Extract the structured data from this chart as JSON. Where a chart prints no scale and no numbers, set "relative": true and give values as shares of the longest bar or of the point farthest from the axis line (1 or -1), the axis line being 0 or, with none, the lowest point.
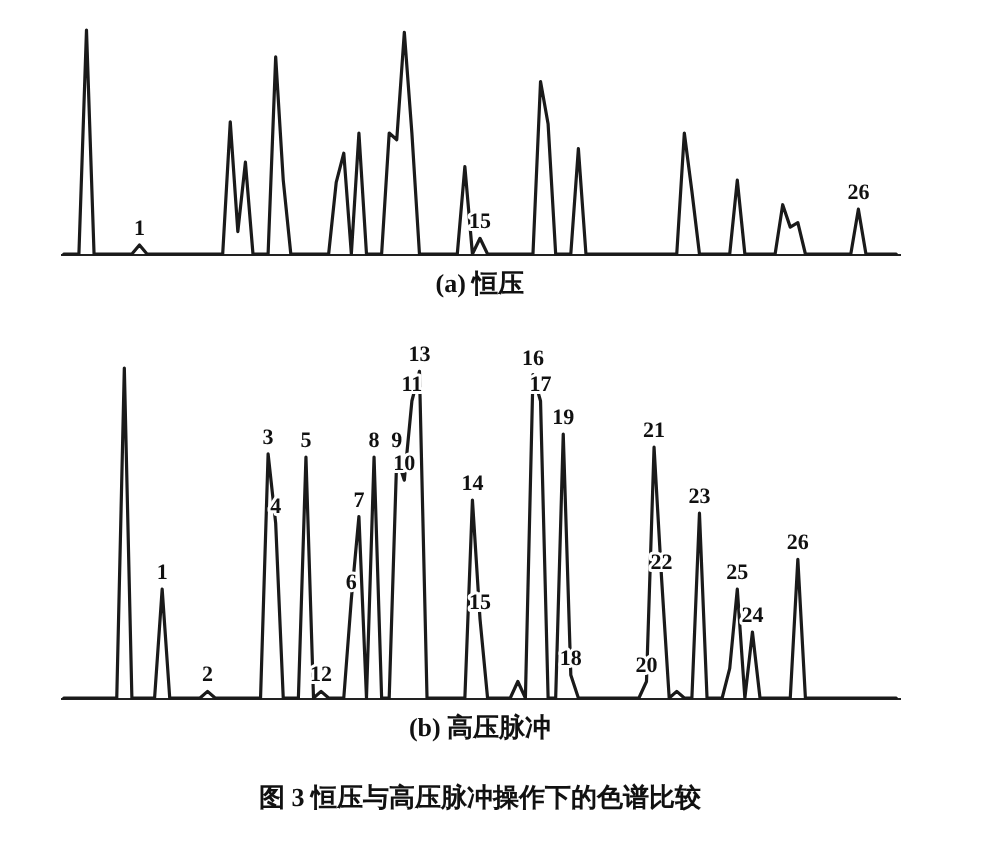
{
  "chart_data": [
    {
      "type": "line",
      "title": "(a) 恒压",
      "relative": true,
      "color": "#1a1a1a",
      "categories": [
        null,
        null,
        null,
        null,
        null,
        null,
        null,
        null,
        null,
        null,
        null,
        null,
        null,
        null,
        null,
        null,
        null,
        null,
        null,
        null,
        null,
        null,
        null,
        null,
        null,
        null,
        null,
        null,
        null,
        null,
        null,
        null,
        null,
        null,
        null,
        null,
        null,
        null,
        null,
        null,
        null,
        null,
        null,
        null,
        null,
        null,
        null,
        null,
        null,
        null,
        null,
        null,
        null,
        null,
        null,
        null,
        null,
        null,
        null,
        null,
        null,
        null,
        null,
        null,
        null,
        null,
        null,
        null,
        null,
        null,
        null,
        null,
        null,
        null,
        null,
        null,
        null,
        null,
        null,
        null,
        null,
        null,
        null,
        null,
        null,
        null,
        null,
        null,
        null,
        null,
        null,
        null,
        null,
        null,
        null,
        null,
        null,
        null,
        null,
        null,
        null,
        null,
        null,
        null,
        null,
        null,
        null,
        null,
        null,
        null,
        null
      ],
      "values": [
        0,
        0,
        0,
        1.0,
        0,
        0,
        0,
        0,
        0,
        0,
        0.04,
        0,
        0,
        0,
        0,
        0,
        0,
        0,
        0,
        0,
        0,
        0,
        0.59,
        0.1,
        0.41,
        0,
        0,
        0,
        0.88,
        0.33,
        0,
        0,
        0,
        0,
        0,
        0,
        0.32,
        0.45,
        0,
        0.54,
        0,
        0,
        0,
        0.54,
        0.51,
        0.99,
        0.54,
        0,
        0,
        0,
        0,
        0,
        0,
        0.39,
        0,
        0.07,
        0,
        0,
        0,
        0,
        0,
        0,
        0,
        0.77,
        0.58,
        0,
        0,
        0,
        0.47,
        0,
        0,
        0,
        0,
        0,
        0,
        0,
        0,
        0,
        0,
        0,
        0,
        0,
        0.54,
        0.28,
        0,
        0,
        0,
        0,
        0,
        0.33,
        0,
        0,
        0,
        0,
        0,
        0.22,
        0.12,
        0.14,
        0,
        0,
        0,
        0,
        0,
        0,
        0,
        0.2,
        0,
        0,
        0,
        0,
        0
      ],
      "annotations": [
        {
          "text": "1",
          "y": 0.04
        },
        {
          "text": "15",
          "y": 0.07
        },
        {
          "text": "26",
          "y": 0.2
        }
      ]
    },
    {
      "type": "line",
      "title": "(b) 高压脉冲",
      "relative": true,
      "color": "#1a1a1a",
      "categories": [
        null,
        null,
        null,
        null,
        null,
        null,
        null,
        null,
        null,
        null,
        null,
        null,
        null,
        null,
        null,
        null,
        null,
        null,
        null,
        null,
        null,
        null,
        null,
        null,
        null,
        null,
        null,
        null,
        null,
        null,
        null,
        null,
        null,
        null,
        null,
        null,
        null,
        null,
        null,
        null,
        null,
        null,
        null,
        null,
        null,
        null,
        null,
        null,
        null,
        null,
        null,
        null,
        null,
        null,
        null,
        null,
        null,
        null,
        null,
        null,
        null,
        null,
        null,
        null,
        null,
        null,
        null,
        null,
        null,
        null,
        null,
        null,
        null,
        null,
        null,
        null,
        null,
        null,
        null,
        null,
        null,
        null,
        null,
        null,
        null,
        null,
        null,
        null,
        null,
        null,
        null,
        null,
        null,
        null,
        null,
        null,
        null,
        null,
        null,
        null,
        null,
        null,
        null,
        null,
        null,
        null,
        null,
        null,
        null,
        null,
        null
      ],
      "values": [
        0,
        0,
        0,
        0,
        0,
        0,
        0,
        0,
        1.0,
        0,
        0,
        0,
        0,
        0.33,
        0,
        0,
        0,
        0,
        0,
        0.02,
        0,
        0,
        0,
        0,
        0,
        0,
        0,
        0.74,
        0.53,
        0,
        0,
        0,
        0.73,
        0,
        0.02,
        0,
        0,
        0,
        0.3,
        0.55,
        0,
        0.73,
        0,
        0,
        0.73,
        0.66,
        0.9,
        0.99,
        0,
        0,
        0,
        0,
        0,
        0,
        0.6,
        0.24,
        0,
        0,
        0,
        0,
        0.05,
        0,
        0.98,
        0.9,
        0,
        0,
        0.8,
        0.07,
        0,
        0,
        0,
        0,
        0,
        0,
        0,
        0,
        0,
        0.05,
        0.76,
        0.36,
        0,
        0.02,
        0,
        0,
        0.56,
        0,
        0,
        0,
        0.09,
        0.33,
        0,
        0.2,
        0,
        0,
        0,
        0,
        0,
        0.42,
        0,
        0,
        0,
        0,
        0,
        0,
        0,
        0,
        0,
        0,
        0,
        0,
        0
      ],
      "annotations": [
        {
          "text": "1",
          "y": 0.33
        },
        {
          "text": "2",
          "y": 0.02
        },
        {
          "text": "3",
          "y": 0.74
        },
        {
          "text": "4",
          "y": 0.53
        },
        {
          "text": "5",
          "y": 0.73
        },
        {
          "text": "12",
          "y": 0.02
        },
        {
          "text": "6",
          "y": 0.3
        },
        {
          "text": "7",
          "y": 0.55
        },
        {
          "text": "8",
          "y": 0.73
        },
        {
          "text": "9",
          "y": 0.73
        },
        {
          "text": "10",
          "y": 0.66
        },
        {
          "text": "11",
          "y": 0.9
        },
        {
          "text": "13",
          "y": 0.99
        },
        {
          "text": "14",
          "y": 0.6
        },
        {
          "text": "15",
          "y": 0.24
        },
        {
          "text": "16",
          "y": 0.98
        },
        {
          "text": "17",
          "y": 0.9
        },
        {
          "text": "19",
          "y": 0.8
        },
        {
          "text": "18",
          "y": 0.07
        },
        {
          "text": "20",
          "y": 0.05
        },
        {
          "text": "21",
          "y": 0.76
        },
        {
          "text": "22",
          "y": 0.36
        },
        {
          "text": "23",
          "y": 0.56
        },
        {
          "text": "25",
          "y": 0.33
        },
        {
          "text": "24",
          "y": 0.2
        },
        {
          "text": "26",
          "y": 0.42
        },
        "图 3    恒压与高压脉冲操作下的色谱比较"
      ]
    }
  ]
}
